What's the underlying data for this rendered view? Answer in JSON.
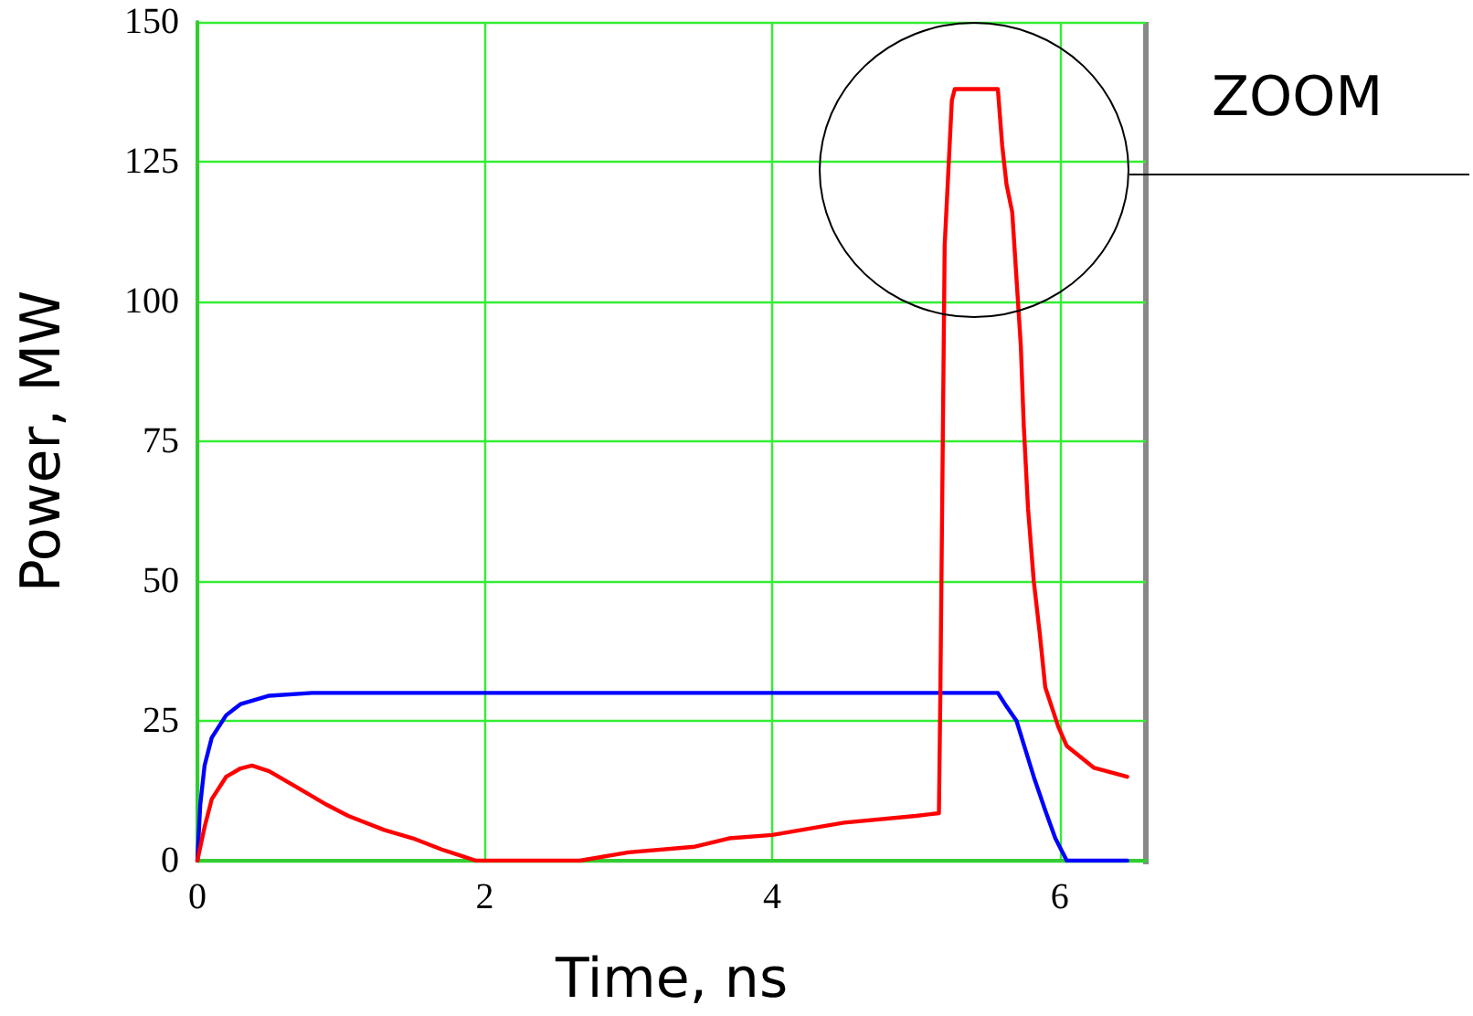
{
  "chart_data": {
    "type": "line",
    "xlabel": "Time, ns",
    "ylabel": "Power, MW",
    "xlim": [
      0,
      6.6
    ],
    "xticks": [
      0,
      2,
      4,
      6
    ],
    "ylim": [
      0,
      150
    ],
    "yticks": [
      0,
      25,
      50,
      75,
      100,
      125,
      150
    ],
    "grid": true,
    "marker": "none",
    "line_style": "solid",
    "annotations": [
      "ZOOM"
    ],
    "series": [
      {
        "color": "#0000ff",
        "x": [
          0,
          0.02,
          0.05,
          0.1,
          0.2,
          0.3,
          0.5,
          0.8,
          5.57,
          5.62,
          5.7,
          5.76,
          5.82,
          5.9,
          5.97,
          6.05,
          6.47
        ],
        "values": [
          0,
          10,
          17,
          22,
          26,
          28,
          29.5,
          30,
          30,
          28,
          25,
          20,
          15,
          9,
          4,
          0,
          0
        ]
      },
      {
        "color": "#ff0000",
        "x": [
          0,
          0.05,
          0.1,
          0.2,
          0.3,
          0.38,
          0.5,
          0.7,
          0.9,
          1.05,
          1.3,
          1.5,
          1.7,
          1.94,
          2.66,
          3.0,
          3.46,
          3.7,
          4.0,
          4.5,
          5.0,
          5.16,
          5.17,
          5.2,
          5.25,
          5.27,
          5.57,
          5.6,
          5.63,
          5.67,
          5.71,
          5.73,
          5.75,
          5.78,
          5.82,
          5.86,
          5.9,
          5.99,
          6.05,
          6.24,
          6.47
        ],
        "values": [
          0,
          6,
          11,
          15,
          16.5,
          17,
          16,
          13,
          10,
          8,
          5.5,
          4,
          2,
          0,
          0,
          1.5,
          2.5,
          4,
          4.6,
          6.8,
          8,
          8.5,
          30,
          110,
          136,
          138,
          138,
          128,
          121,
          116,
          100,
          92,
          78,
          63,
          50,
          41,
          31,
          24,
          20.5,
          16.6,
          15
        ]
      }
    ]
  }
}
